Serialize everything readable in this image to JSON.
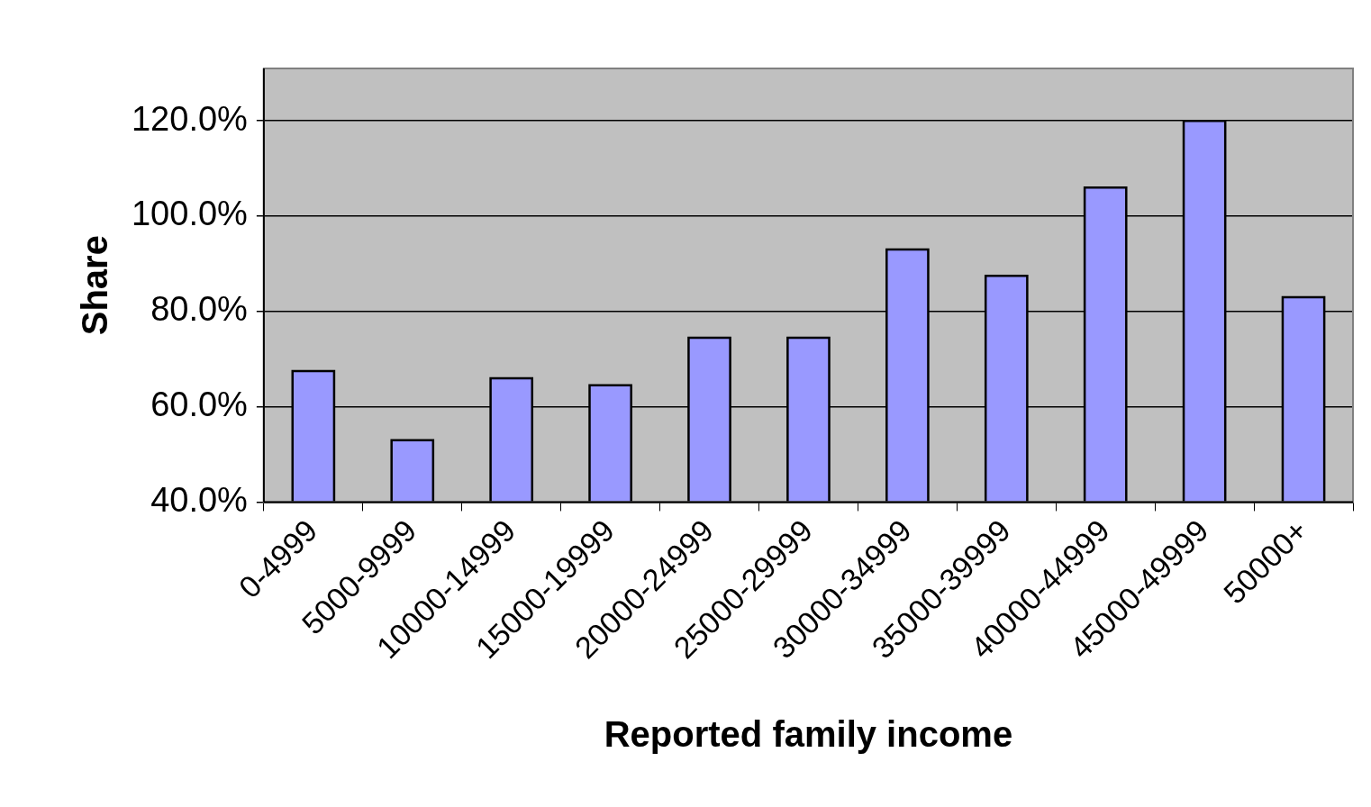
{
  "chart_data": {
    "type": "bar",
    "xlabel": "Reported family income",
    "ylabel": "Share",
    "categories": [
      "0-4999",
      "5000-9999",
      "10000-14999",
      "15000-19999",
      "20000-24999",
      "25000-29999",
      "30000-34999",
      "35000-39999",
      "40000-44999",
      "45000-49999",
      "50000+"
    ],
    "values": [
      67.5,
      53,
      66,
      64.5,
      74.5,
      74.5,
      93,
      87.5,
      106,
      120,
      83
    ],
    "color": "#9999ff",
    "ylim": [
      40,
      131
    ],
    "yticks": [
      {
        "value": 40,
        "label": "40.0%"
      },
      {
        "value": 60,
        "label": "60.0%"
      },
      {
        "value": 80,
        "label": "80.0%"
      },
      {
        "value": 100,
        "label": "100.0%"
      },
      {
        "value": 120,
        "label": "120.0%"
      }
    ],
    "grid": "y",
    "legend": false
  }
}
